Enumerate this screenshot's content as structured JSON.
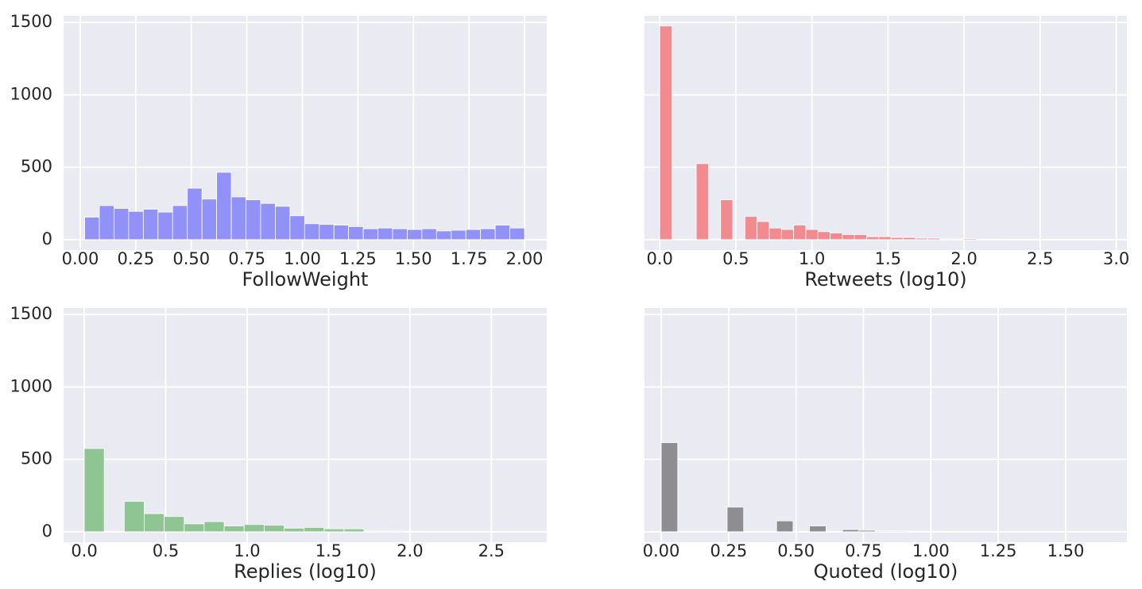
{
  "chart_data": [
    {
      "type": "histogram",
      "xlabel": "FollowWeight",
      "color": "#9191f7",
      "grid": true,
      "bins": [
        0.02,
        0.086,
        0.152,
        0.218,
        0.284,
        0.35,
        0.416,
        0.482,
        0.548,
        0.614,
        0.68,
        0.746,
        0.812,
        0.878,
        0.944,
        1.01,
        1.076,
        1.142,
        1.208,
        1.274,
        1.34,
        1.406,
        1.472,
        1.538,
        1.604,
        1.67,
        1.736,
        1.802,
        1.868,
        1.934,
        2.0
      ],
      "values": [
        155,
        235,
        215,
        195,
        210,
        190,
        235,
        355,
        280,
        465,
        295,
        275,
        250,
        230,
        165,
        110,
        105,
        100,
        90,
        75,
        80,
        75,
        70,
        75,
        60,
        65,
        70,
        75,
        100,
        80
      ],
      "xlim": [
        -0.075,
        2.1
      ],
      "ylim": [
        -72,
        1545
      ],
      "xticks": [
        {
          "value": 0,
          "label": "0.00"
        },
        0.25,
        {
          "value": 0.5,
          "label": "0.50"
        },
        0.75,
        {
          "value": 1,
          "label": "1.00"
        },
        1.25,
        {
          "value": 1.5,
          "label": "1.50"
        },
        1.75,
        {
          "value": 2,
          "label": "2.00"
        }
      ],
      "yticks": [
        0,
        500,
        1000,
        1500
      ]
    },
    {
      "type": "histogram",
      "xlabel": "Retweets (log10)",
      "color": "#f28b8f",
      "grid": true,
      "bins": [
        0,
        0.08,
        0.16,
        0.24,
        0.32,
        0.4,
        0.48,
        0.56,
        0.64,
        0.72,
        0.8,
        0.88,
        0.96,
        1.04,
        1.12,
        1.2,
        1.28,
        1.36,
        1.44,
        1.52,
        1.6,
        1.68,
        1.76,
        1.84,
        1.92,
        2.0,
        2.08,
        2.16,
        2.24,
        2.32,
        2.4,
        2.48,
        2.56,
        2.64,
        2.72,
        2.8,
        2.88,
        2.96
      ],
      "values": [
        1475,
        0,
        0,
        525,
        0,
        275,
        0,
        160,
        125,
        80,
        70,
        100,
        70,
        55,
        45,
        35,
        35,
        20,
        20,
        15,
        15,
        10,
        10,
        5,
        5,
        7,
        3,
        3,
        2,
        2,
        2,
        2,
        2,
        1,
        1,
        1,
        2
      ],
      "xlim": [
        -0.1,
        3.07
      ],
      "ylim": [
        -72,
        1545
      ],
      "xticks": [
        {
          "value": 0,
          "label": "0.0"
        },
        0.5,
        {
          "value": 1,
          "label": "1.0"
        },
        1.5,
        {
          "value": 2,
          "label": "2.0"
        },
        2.5,
        {
          "value": 3,
          "label": "3.0"
        }
      ],
      "yticks": [
        0,
        500,
        1000,
        1500
      ]
    },
    {
      "type": "histogram",
      "xlabel": "Replies (log10)",
      "color": "#8fc493",
      "grid": true,
      "bins": [
        0,
        0.1227,
        0.2455,
        0.3682,
        0.4909,
        0.6136,
        0.7364,
        0.8591,
        0.9818,
        1.1045,
        1.2273,
        1.35,
        1.4727,
        1.5955,
        1.7182,
        1.8409,
        1.9636,
        2.0864,
        2.2091,
        2.3318,
        2.4545,
        2.5773,
        2.7
      ],
      "values": [
        575,
        0,
        210,
        125,
        105,
        55,
        70,
        40,
        50,
        45,
        25,
        30,
        20,
        20,
        5,
        5,
        3,
        2,
        1,
        1,
        1,
        1
      ],
      "xlim": [
        -0.127,
        2.84
      ],
      "ylim": [
        -72,
        1545
      ],
      "xticks": [
        {
          "value": 0,
          "label": "0.0"
        },
        0.5,
        {
          "value": 1,
          "label": "1.0"
        },
        1.5,
        {
          "value": 2,
          "label": "2.0"
        },
        2.5
      ],
      "yticks": [
        0,
        500,
        1000,
        1500
      ]
    },
    {
      "type": "histogram",
      "xlabel": "Quoted (log10)",
      "color": "#8e8d91",
      "grid": true,
      "bins": [
        0,
        0.0611,
        0.1222,
        0.1833,
        0.2444,
        0.3056,
        0.3667,
        0.4278,
        0.4889,
        0.55,
        0.6111,
        0.6722,
        0.7333,
        0.7944,
        0.8556,
        0.9167,
        0.9778,
        1.0389,
        1.1,
        1.1611,
        1.2222,
        1.2833,
        1.3444,
        1.4056,
        1.4667,
        1.5278,
        1.5889,
        1.65
      ],
      "values": [
        615,
        0,
        0,
        0,
        170,
        0,
        0,
        75,
        0,
        40,
        0,
        15,
        10,
        5,
        5,
        3,
        3,
        2,
        2,
        1,
        1,
        1,
        0,
        1,
        0,
        0,
        1
      ],
      "xlim": [
        -0.062,
        1.727
      ],
      "ylim": [
        -72,
        1545
      ],
      "xticks": [
        {
          "value": 0,
          "label": "0.00"
        },
        0.25,
        {
          "value": 0.5,
          "label": "0.50"
        },
        0.75,
        {
          "value": 1,
          "label": "1.00"
        },
        1.25,
        {
          "value": 1.5,
          "label": "1.50"
        }
      ],
      "yticks": [
        0,
        500,
        1000,
        1500
      ]
    }
  ]
}
